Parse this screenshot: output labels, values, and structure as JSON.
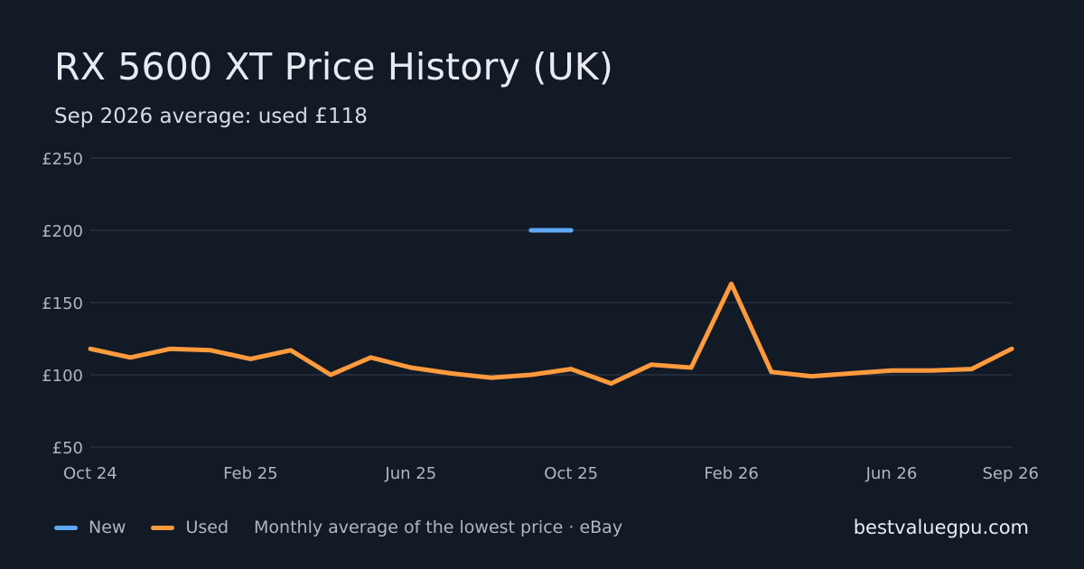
{
  "header": {
    "title": "RX 5600 XT Price History (UK)",
    "subtitle": "Sep 2026 average: used £118"
  },
  "legend": {
    "new_label": "New",
    "used_label": "Used",
    "note": "Monthly average of the lowest price · eBay"
  },
  "brand": "bestvaluegpu.com",
  "colors": {
    "background": "#121a26",
    "grid": "#283142",
    "axis_text": "#aeb6c3",
    "new": "#5fa8f5",
    "used": "#ff9a3d"
  },
  "chart_data": {
    "type": "line",
    "title": "RX 5600 XT Price History (UK)",
    "subtitle": "Sep 2026 average: used £118",
    "x": [
      "Oct 24",
      "Nov 24",
      "Dec 24",
      "Jan 25",
      "Feb 25",
      "Mar 25",
      "Apr 25",
      "May 25",
      "Jun 25",
      "Jul 25",
      "Aug 25",
      "Sep 25",
      "Oct 25",
      "Nov 25",
      "Dec 25",
      "Jan 26",
      "Feb 26",
      "Mar 26",
      "Apr 26",
      "May 26",
      "Jun 26",
      "Jul 26",
      "Aug 26",
      "Sep 26"
    ],
    "x_tick_labels": [
      "Oct 24",
      "Feb 25",
      "Jun 25",
      "Oct 25",
      "Feb 26",
      "Jun 26",
      "Sep 26"
    ],
    "x_tick_indices": [
      0,
      4,
      8,
      12,
      16,
      20,
      23
    ],
    "y_ticks": [
      50,
      100,
      150,
      200,
      250
    ],
    "y_tick_labels": [
      "£50",
      "£100",
      "£150",
      "£200",
      "£250"
    ],
    "ylim": [
      50,
      250
    ],
    "grid": true,
    "legend_position": "bottom-left",
    "series": [
      {
        "name": "New",
        "values": [
          null,
          null,
          null,
          null,
          null,
          null,
          null,
          null,
          null,
          null,
          null,
          200,
          200,
          null,
          null,
          null,
          null,
          null,
          null,
          null,
          null,
          null,
          null,
          null
        ]
      },
      {
        "name": "Used",
        "values": [
          118,
          112,
          118,
          117,
          111,
          117,
          100,
          112,
          105,
          101,
          98,
          100,
          104,
          94,
          107,
          105,
          163,
          102,
          99,
          101,
          103,
          103,
          104,
          118
        ]
      }
    ]
  }
}
